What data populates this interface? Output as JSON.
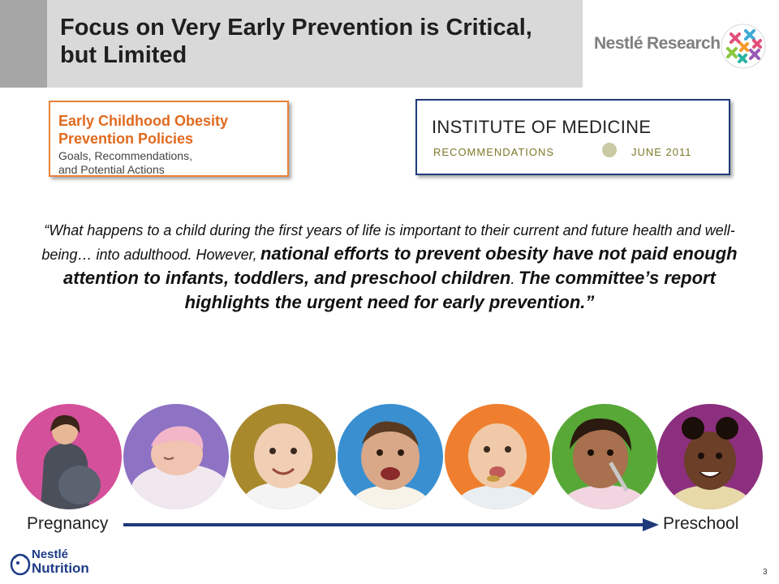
{
  "header": {
    "title_line1": "Focus on Very Early Prevention is Critical,",
    "title_line2": "but Limited",
    "logo_word1": "Nestlé",
    "logo_word2": "Research"
  },
  "report_box": {
    "line1": "Early Childhood Obesity",
    "line2": "Prevention Policies",
    "line3": "Goals, Recommendations,",
    "line4": "and Potential Actions"
  },
  "iom_box": {
    "title": "INSTITUTE OF MEDICINE",
    "sub_left": "RECOMMENDATIONS",
    "sub_right": "JUNE 2011"
  },
  "quote": {
    "part1": "“What happens to a child during the first years of life is important to their current and future health and well-being… into adulthood. However,",
    "part2": "national efforts to prevent obesity have not paid enough attention to infants, toddlers, and preschool children",
    "part3": ".",
    "part4": "The committee’s report highlights the urgent need for early prevention.”"
  },
  "timeline": {
    "start_label": "Pregnancy",
    "end_label": "Preschool",
    "circle_colors": [
      "#d4509a",
      "#8e72c4",
      "#a8892c",
      "#3a8fd0",
      "#ef7f2e",
      "#58a838",
      "#8d2f7f"
    ]
  },
  "footer": {
    "logo_word1": "Nestlé",
    "logo_word2": "Nutrition",
    "page_number": "3"
  },
  "colors": {
    "title_band": "#d9d9d9",
    "accent_orange": "#e06a1e",
    "accent_navy": "#1f3a7a",
    "nestle_blue": "#1e3c86"
  }
}
